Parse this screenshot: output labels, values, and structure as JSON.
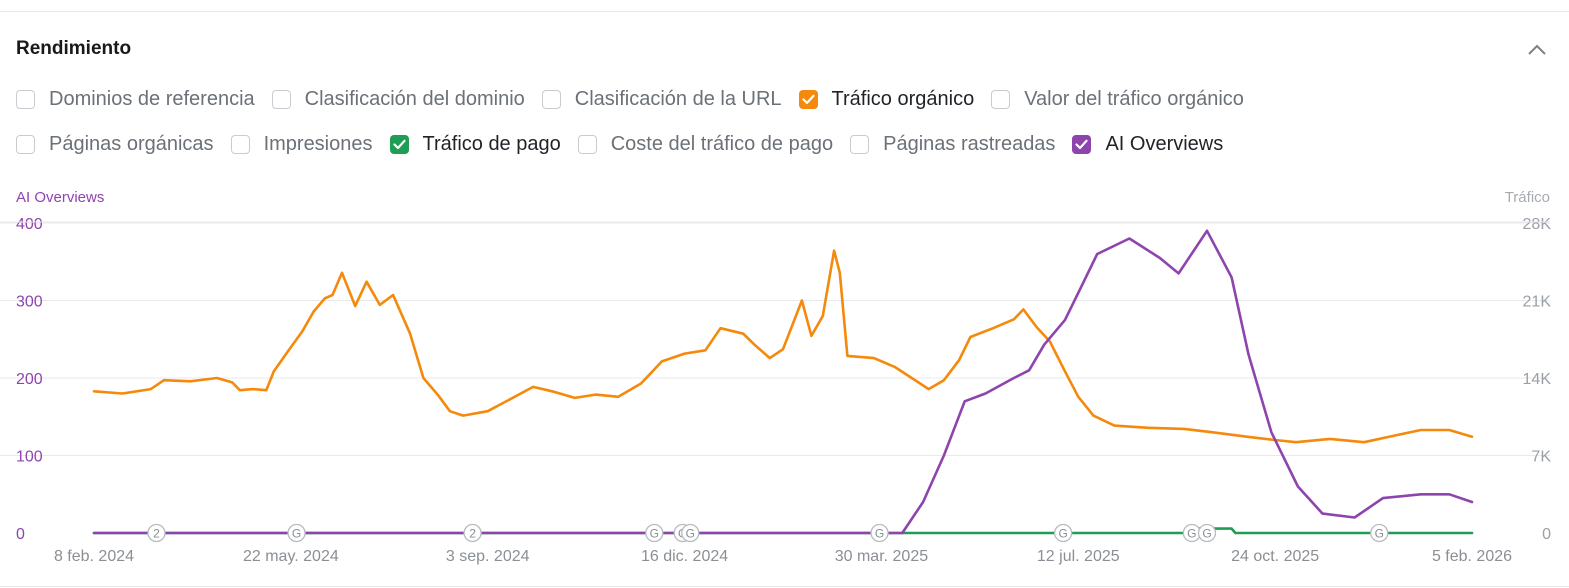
{
  "panel": {
    "title": "Rendimiento",
    "collapse_icon": "chevron-up-icon"
  },
  "metrics_row1": [
    {
      "label": "Dominios de referencia",
      "checked": false,
      "color": ""
    },
    {
      "label": "Clasificación del dominio",
      "checked": false,
      "color": ""
    },
    {
      "label": "Clasificación de la URL",
      "checked": false,
      "color": ""
    },
    {
      "label": "Tráfico orgánico",
      "checked": true,
      "color": "#f5890b"
    },
    {
      "label": "Valor del tráfico orgánico",
      "checked": false,
      "color": ""
    }
  ],
  "metrics_row2": [
    {
      "label": "Páginas orgánicas",
      "checked": false,
      "color": ""
    },
    {
      "label": "Impresiones",
      "checked": false,
      "color": ""
    },
    {
      "label": "Tráfico de pago",
      "checked": true,
      "color": "#1f9d55"
    },
    {
      "label": "Coste del tráfico de pago",
      "checked": false,
      "color": ""
    },
    {
      "label": "Páginas rastreadas",
      "checked": false,
      "color": ""
    },
    {
      "label": "AI Overviews",
      "checked": true,
      "color": "#8e44ad"
    }
  ],
  "chart_data": {
    "type": "line",
    "left_axis_title": "AI Overviews",
    "right_axis_title": "Tráfico",
    "left_ticks": [
      "0",
      "100",
      "200",
      "300",
      "400"
    ],
    "right_ticks": [
      "0",
      "7K",
      "14K",
      "21K",
      "28K"
    ],
    "left_ylim": [
      0,
      400
    ],
    "right_ylim": [
      0,
      28000
    ],
    "x_start": "2024-02-08",
    "x_end": "2026-02-05",
    "x_tick_labels": [
      {
        "date": "2024-02-08",
        "label": "8 feb. 2024"
      },
      {
        "date": "2024-05-22",
        "label": "22 may. 2024"
      },
      {
        "date": "2024-09-03",
        "label": "3 sep. 2024"
      },
      {
        "date": "2024-12-16",
        "label": "16 dic. 2024"
      },
      {
        "date": "2025-03-30",
        "label": "30 mar. 2025"
      },
      {
        "date": "2025-07-12",
        "label": "12 jul. 2025"
      },
      {
        "date": "2025-10-24",
        "label": "24 oct. 2025"
      },
      {
        "date": "2026-02-05",
        "label": "5 feb. 2026"
      }
    ],
    "grid": true,
    "series": [
      {
        "name": "Tráfico orgánico",
        "axis": "right",
        "color": "#f5890b",
        "points": [
          [
            "2024-02-08",
            12800
          ],
          [
            "2024-02-23",
            12600
          ],
          [
            "2024-03-09",
            13000
          ],
          [
            "2024-03-16",
            13800
          ],
          [
            "2024-03-30",
            13700
          ],
          [
            "2024-04-13",
            14000
          ],
          [
            "2024-04-21",
            13600
          ],
          [
            "2024-04-25",
            12900
          ],
          [
            "2024-05-02",
            13000
          ],
          [
            "2024-05-09",
            12900
          ],
          [
            "2024-05-13",
            14600
          ],
          [
            "2024-05-20",
            16300
          ],
          [
            "2024-05-28",
            18200
          ],
          [
            "2024-06-03",
            20000
          ],
          [
            "2024-06-09",
            21200
          ],
          [
            "2024-06-13",
            21500
          ],
          [
            "2024-06-18",
            23500
          ],
          [
            "2024-06-25",
            20500
          ],
          [
            "2024-07-01",
            22700
          ],
          [
            "2024-07-08",
            20600
          ],
          [
            "2024-07-15",
            21500
          ],
          [
            "2024-07-24",
            18000
          ],
          [
            "2024-07-31",
            14000
          ],
          [
            "2024-08-08",
            12400
          ],
          [
            "2024-08-14",
            11000
          ],
          [
            "2024-08-21",
            10600
          ],
          [
            "2024-09-03",
            11000
          ],
          [
            "2024-09-14",
            12000
          ],
          [
            "2024-09-27",
            13200
          ],
          [
            "2024-10-07",
            12800
          ],
          [
            "2024-10-19",
            12200
          ],
          [
            "2024-10-30",
            12500
          ],
          [
            "2024-11-11",
            12300
          ],
          [
            "2024-11-23",
            13500
          ],
          [
            "2024-12-04",
            15500
          ],
          [
            "2024-12-16",
            16200
          ],
          [
            "2024-12-27",
            16500
          ],
          [
            "2025-01-04",
            18500
          ],
          [
            "2025-01-16",
            18000
          ],
          [
            "2025-01-22",
            17000
          ],
          [
            "2025-01-30",
            15800
          ],
          [
            "2025-02-06",
            16600
          ],
          [
            "2025-02-16",
            21000
          ],
          [
            "2025-02-21",
            17800
          ],
          [
            "2025-02-27",
            19600
          ],
          [
            "2025-03-05",
            25500
          ],
          [
            "2025-03-08",
            23500
          ],
          [
            "2025-03-12",
            16000
          ],
          [
            "2025-03-26",
            15800
          ],
          [
            "2025-04-06",
            15000
          ],
          [
            "2025-04-15",
            14000
          ],
          [
            "2025-04-24",
            13000
          ],
          [
            "2025-05-02",
            13800
          ],
          [
            "2025-05-10",
            15600
          ],
          [
            "2025-05-16",
            17700
          ],
          [
            "2025-05-28",
            18500
          ],
          [
            "2025-06-08",
            19300
          ],
          [
            "2025-06-13",
            20200
          ],
          [
            "2025-06-20",
            18600
          ],
          [
            "2025-06-27",
            17300
          ],
          [
            "2025-07-05",
            14600
          ],
          [
            "2025-07-12",
            12300
          ],
          [
            "2025-07-20",
            10600
          ],
          [
            "2025-07-31",
            9700
          ],
          [
            "2025-08-18",
            9500
          ],
          [
            "2025-09-06",
            9400
          ],
          [
            "2025-09-21",
            9100
          ],
          [
            "2025-10-09",
            8700
          ],
          [
            "2025-10-24",
            8400
          ],
          [
            "2025-11-04",
            8200
          ],
          [
            "2025-11-22",
            8500
          ],
          [
            "2025-12-10",
            8200
          ],
          [
            "2025-12-26",
            8800
          ],
          [
            "2026-01-09",
            9300
          ],
          [
            "2026-01-24",
            9300
          ],
          [
            "2026-02-05",
            8700
          ]
        ]
      },
      {
        "name": "Tráfico de pago",
        "axis": "right",
        "color": "#1f9d55",
        "points": [
          [
            "2024-02-08",
            0
          ],
          [
            "2025-04-13",
            0
          ],
          [
            "2025-09-10",
            0
          ],
          [
            "2025-09-12",
            400
          ],
          [
            "2025-10-01",
            400
          ],
          [
            "2025-10-03",
            0
          ],
          [
            "2026-02-05",
            0
          ]
        ]
      },
      {
        "name": "AI Overviews",
        "axis": "left",
        "color": "#8e44ad",
        "points": [
          [
            "2024-02-08",
            0
          ],
          [
            "2025-04-10",
            0
          ],
          [
            "2025-04-21",
            40
          ],
          [
            "2025-05-02",
            100
          ],
          [
            "2025-05-13",
            170
          ],
          [
            "2025-05-24",
            180
          ],
          [
            "2025-06-08",
            200
          ],
          [
            "2025-06-16",
            210
          ],
          [
            "2025-06-24",
            243
          ],
          [
            "2025-07-05",
            275
          ],
          [
            "2025-07-12",
            310
          ],
          [
            "2025-07-22",
            360
          ],
          [
            "2025-08-08",
            380
          ],
          [
            "2025-08-24",
            355
          ],
          [
            "2025-09-03",
            335
          ],
          [
            "2025-09-18",
            390
          ],
          [
            "2025-10-01",
            330
          ],
          [
            "2025-10-10",
            230
          ],
          [
            "2025-10-22",
            130
          ],
          [
            "2025-11-05",
            60
          ],
          [
            "2025-11-18",
            25
          ],
          [
            "2025-12-05",
            20
          ],
          [
            "2025-12-20",
            45
          ],
          [
            "2026-01-09",
            50
          ],
          [
            "2026-01-24",
            50
          ],
          [
            "2026-02-05",
            40
          ]
        ]
      }
    ],
    "event_markers": [
      {
        "date": "2024-03-12",
        "label": "2"
      },
      {
        "date": "2024-05-25",
        "label": "G"
      },
      {
        "date": "2024-08-26",
        "label": "2"
      },
      {
        "date": "2024-11-30",
        "label": "G"
      },
      {
        "date": "2024-12-15",
        "label": "G"
      },
      {
        "date": "2024-12-19",
        "label": "G"
      },
      {
        "date": "2025-03-29",
        "label": "G"
      },
      {
        "date": "2025-07-04",
        "label": "G"
      },
      {
        "date": "2025-09-10",
        "label": "G"
      },
      {
        "date": "2025-09-18",
        "label": "G"
      },
      {
        "date": "2025-12-18",
        "label": "G"
      }
    ]
  }
}
